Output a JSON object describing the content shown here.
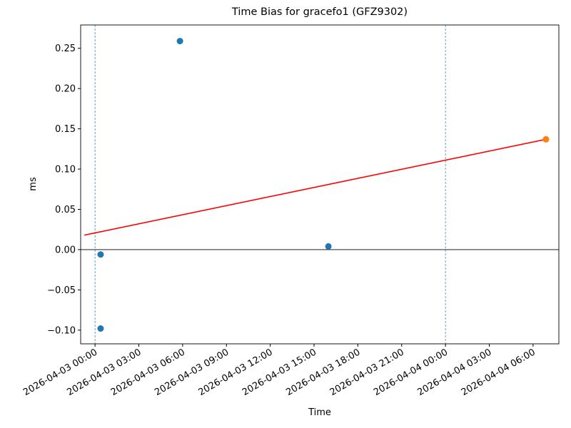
{
  "chart_data": {
    "type": "scatter",
    "title": "Time Bias for gracefo1 (GFZ9302)",
    "x_label": "Time",
    "y_label": "ms",
    "xlim": [
      "2026-04-02 23:01",
      "2026-04-04 07:46"
    ],
    "xticks": [
      "2026-04-03 00:00",
      "2026-04-03 03:00",
      "2026-04-03 06:00",
      "2026-04-03 09:00",
      "2026-04-03 12:00",
      "2026-04-03 15:00",
      "2026-04-03 18:00",
      "2026-04-03 21:00",
      "2026-04-04 00:00",
      "2026-04-04 03:00",
      "2026-04-04 06:00"
    ],
    "ylim": [
      -0.117,
      0.279
    ],
    "yticks": [
      {
        "value": -0.1,
        "label": "−0.10"
      },
      {
        "value": -0.05,
        "label": "−0.05"
      },
      {
        "value": 0,
        "label": "0.00"
      },
      0.05,
      {
        "value": 0.1,
        "label": "0.10"
      },
      0.15,
      {
        "value": 0.2,
        "label": "0.20"
      },
      0.25
    ],
    "vlines": [
      "2026-04-03 00:00",
      "2026-04-04 00:00"
    ],
    "vline_color": "#1f77b4",
    "hline": 0,
    "hline_color": "#000000",
    "series": [
      {
        "type": "scatter",
        "color": "#1f77b4",
        "x": [
          "2026-04-03 00:23",
          "2026-04-03 00:23",
          "2026-04-03 05:49",
          "2026-04-03 15:59"
        ],
        "values": [
          -0.006,
          -0.098,
          0.259,
          0.004
        ]
      },
      {
        "type": "line",
        "color": "#ff0000",
        "x": [
          "2026-04-02 23:16",
          "2026-04-04 06:53"
        ],
        "values": [
          0.018,
          0.137
        ]
      },
      {
        "type": "scatter",
        "color": "#ff7f0e",
        "x": [
          "2026-04-04 06:53"
        ],
        "values": [
          0.137
        ]
      }
    ]
  }
}
